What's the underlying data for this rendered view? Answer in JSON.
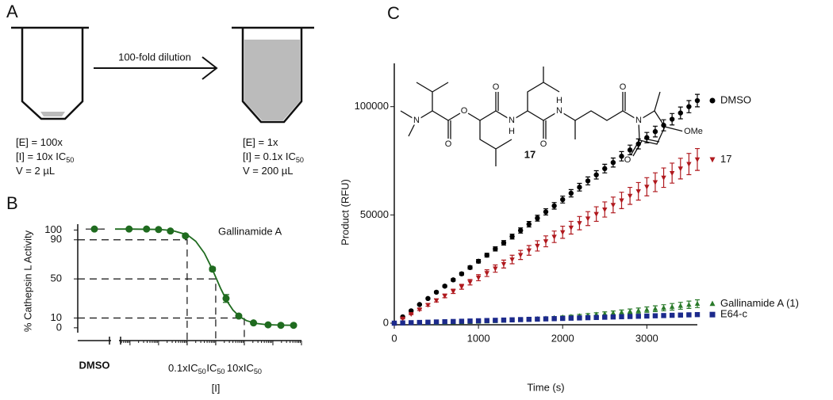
{
  "panels": [
    "A",
    "B",
    "C"
  ],
  "diagram": {
    "arrow_label": "100-fold dilution",
    "before": [
      {
        "text": "[E] = 100x"
      },
      {
        "text": "[I] = 10x IC",
        "sub": "50"
      },
      {
        "text": "V  = 2 µL"
      }
    ],
    "after": [
      {
        "text": "[E] = 1x"
      },
      {
        "text": "[I] = 0.1x IC",
        "sub": "50"
      },
      {
        "text": "V  = 200 µL"
      }
    ]
  },
  "structure": {
    "labels": [
      "N",
      "O",
      "O",
      "O",
      "N",
      "H",
      "O",
      "N",
      "H",
      "O",
      "N",
      "OMe",
      "O"
    ],
    "compound": "17"
  },
  "chart_data": [
    {
      "type": "dose-response",
      "annotation": "Gallinamide A",
      "xlabel": "[I]",
      "ylabel": "% Cathepsin L Activity",
      "log_x": true,
      "color": "#1f6b1f",
      "control": {
        "label": "DMSO",
        "value": 101
      },
      "x": [
        0.00093,
        0.0038,
        0.01,
        0.026,
        0.087,
        0.77,
        2.3,
        6.4,
        21,
        68,
        190,
        530
      ],
      "values": [
        101,
        101,
        100.5,
        99,
        94,
        60,
        30,
        12,
        5,
        3,
        2.5,
        2.5
      ],
      "errors": [
        1,
        1,
        1,
        1,
        1.5,
        2,
        4,
        1.5,
        1,
        0.5,
        0.5,
        0.5
      ],
      "fit": {
        "x": [
          0.0003,
          0.001,
          0.01,
          0.03,
          0.1,
          0.2,
          0.4,
          0.7,
          1,
          1.5,
          2.5,
          4,
          7,
          12,
          25,
          60,
          200,
          600
        ],
        "values": [
          101,
          101,
          100.6,
          99.5,
          95.2,
          88.5,
          76.4,
          62.1,
          51.8,
          40,
          27.1,
          18.2,
          11.2,
          7.3,
          4.5,
          3.2,
          2.7,
          2.55
        ]
      },
      "guides": [
        {
          "x": 0.1,
          "y": 90
        },
        {
          "x": 1,
          "y": 50
        },
        {
          "x": 10,
          "y": 10
        }
      ],
      "xlim": [
        0.0003,
        1000
      ],
      "xticks": [
        {
          "value": 0.1,
          "label": "0.1xIC",
          "sub": "50"
        },
        {
          "value": 1,
          "label": "IC",
          "sub": "50"
        },
        {
          "value": 10,
          "label": "10xIC",
          "sub": "50"
        }
      ],
      "ylim": [
        -5,
        106
      ],
      "yticks": [
        0,
        10,
        50,
        90,
        100
      ]
    },
    {
      "type": "scatter",
      "xlabel": "Time (s)",
      "ylabel": "Product (RFU)",
      "legend": "right",
      "x": [
        0,
        100,
        200,
        300,
        400,
        500,
        600,
        700,
        800,
        900,
        1000,
        1100,
        1200,
        1300,
        1400,
        1500,
        1600,
        1700,
        1800,
        1900,
        2000,
        2100,
        2200,
        2300,
        2400,
        2500,
        2600,
        2700,
        2800,
        2900,
        3000,
        3100,
        3200,
        3300,
        3400,
        3500,
        3600
      ],
      "series": [
        {
          "name": "DMSO",
          "color": "#000000",
          "marker": "circle",
          "values": [
            0,
            2900,
            5700,
            8600,
            11400,
            14300,
            17100,
            20000,
            22800,
            25700,
            28600,
            31400,
            34300,
            37100,
            40000,
            42800,
            45700,
            48500,
            51400,
            54200,
            57100,
            60000,
            62800,
            65700,
            68500,
            71400,
            74200,
            77100,
            80000,
            82800,
            85700,
            88500,
            91400,
            94200,
            97100,
            100000,
            102800
          ],
          "errors": [
            0,
            80,
            160,
            240,
            320,
            400,
            480,
            560,
            640,
            720,
            800,
            880,
            960,
            1040,
            1120,
            1200,
            1280,
            1360,
            1440,
            1520,
            1600,
            1680,
            1760,
            1840,
            1920,
            2000,
            2080,
            2160,
            2240,
            2320,
            2400,
            2480,
            2560,
            2640,
            2720,
            2800,
            2880
          ]
        },
        {
          "name": "17",
          "color": "#b0191e",
          "marker": "triangle-down",
          "values": [
            0,
            2100,
            4200,
            6300,
            8400,
            10500,
            12600,
            14700,
            16800,
            18900,
            21000,
            23100,
            25200,
            27300,
            29400,
            31500,
            33600,
            35700,
            37800,
            39900,
            42000,
            44100,
            46200,
            48300,
            50400,
            52500,
            54600,
            56700,
            58800,
            60900,
            63000,
            65100,
            67200,
            69300,
            71400,
            73500,
            75600
          ],
          "errors": [
            0,
            140,
            280,
            420,
            560,
            700,
            840,
            980,
            1120,
            1260,
            1400,
            1540,
            1680,
            1820,
            1960,
            2100,
            2240,
            2380,
            2520,
            2660,
            2800,
            2940,
            3080,
            3220,
            3360,
            3500,
            3640,
            3780,
            3920,
            4060,
            4200,
            4340,
            4480,
            4620,
            4760,
            4900,
            5040
          ]
        },
        {
          "name": "Gallinamide A (1)",
          "color": "#2a7a2a",
          "marker": "triangle-up",
          "values": [
            0,
            7,
            28,
            63,
            111,
            174,
            250,
            340,
            444,
            563,
            694,
            840,
            1000,
            1174,
            1361,
            1563,
            1778,
            2007,
            2250,
            2507,
            2778,
            3063,
            3361,
            3674,
            4000,
            4340,
            4694,
            5063,
            5444,
            5840,
            6250,
            6674,
            7111,
            7563,
            8028,
            8507,
            9000
          ],
          "errors": [
            0,
            1,
            6,
            13,
            22,
            35,
            50,
            68,
            89,
            113,
            139,
            168,
            200,
            235,
            272,
            313,
            356,
            401,
            450,
            501,
            556,
            613,
            672,
            735,
            800,
            868,
            939,
            1013,
            1089,
            1168,
            1250,
            1335,
            1422,
            1513,
            1606,
            1701,
            1800
          ]
        },
        {
          "name": "E64-c",
          "color": "#1c2a8c",
          "marker": "square",
          "values": [
            0,
            110,
            220,
            330,
            440,
            550,
            660,
            770,
            880,
            990,
            1100,
            1210,
            1320,
            1430,
            1540,
            1650,
            1760,
            1870,
            1980,
            2090,
            2200,
            2310,
            2420,
            2530,
            2640,
            2750,
            2860,
            2970,
            3080,
            3190,
            3300,
            3410,
            3520,
            3630,
            3740,
            3850,
            3960
          ],
          "errors": [
            0,
            8,
            16,
            24,
            32,
            40,
            48,
            56,
            64,
            72,
            80,
            88,
            96,
            104,
            112,
            120,
            128,
            136,
            144,
            152,
            160,
            168,
            176,
            184,
            192,
            200,
            208,
            216,
            224,
            232,
            240,
            248,
            256,
            264,
            272,
            280,
            288
          ]
        }
      ],
      "xlim": [
        0,
        3600
      ],
      "xticks": [
        0,
        1000,
        2000,
        3000
      ],
      "ylim": [
        0,
        120000
      ],
      "yticks": [
        0,
        50000,
        100000
      ]
    }
  ]
}
